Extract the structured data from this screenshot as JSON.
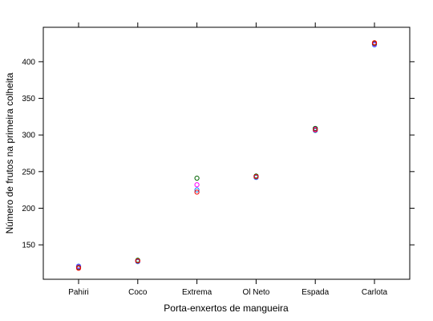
{
  "chart_data": {
    "type": "scatter",
    "title": "",
    "xlabel": "Porta-enxertos de mangueira",
    "ylabel": "Número de frutos na primeira colheita",
    "categories": [
      "Pahiri",
      "Coco",
      "Extrema",
      "Ol Neto",
      "Espada",
      "Carlota"
    ],
    "ylim": [
      103,
      447
    ],
    "yticks": [
      150,
      200,
      250,
      300,
      350,
      400
    ],
    "grid": false,
    "legend": "none",
    "marker": "open-circle",
    "series": [
      {
        "color": "#0080ff",
        "values": [
          121,
          127,
          225,
          242,
          306,
          423
        ]
      },
      {
        "color": "#ff00ff",
        "values": [
          120,
          128,
          232,
          243,
          308,
          424
        ]
      },
      {
        "color": "#006400",
        "values": [
          119,
          129,
          241,
          244,
          309,
          425
        ]
      },
      {
        "color": "#ff0000",
        "values": [
          118,
          128,
          222,
          243,
          307,
          426
        ]
      }
    ]
  }
}
